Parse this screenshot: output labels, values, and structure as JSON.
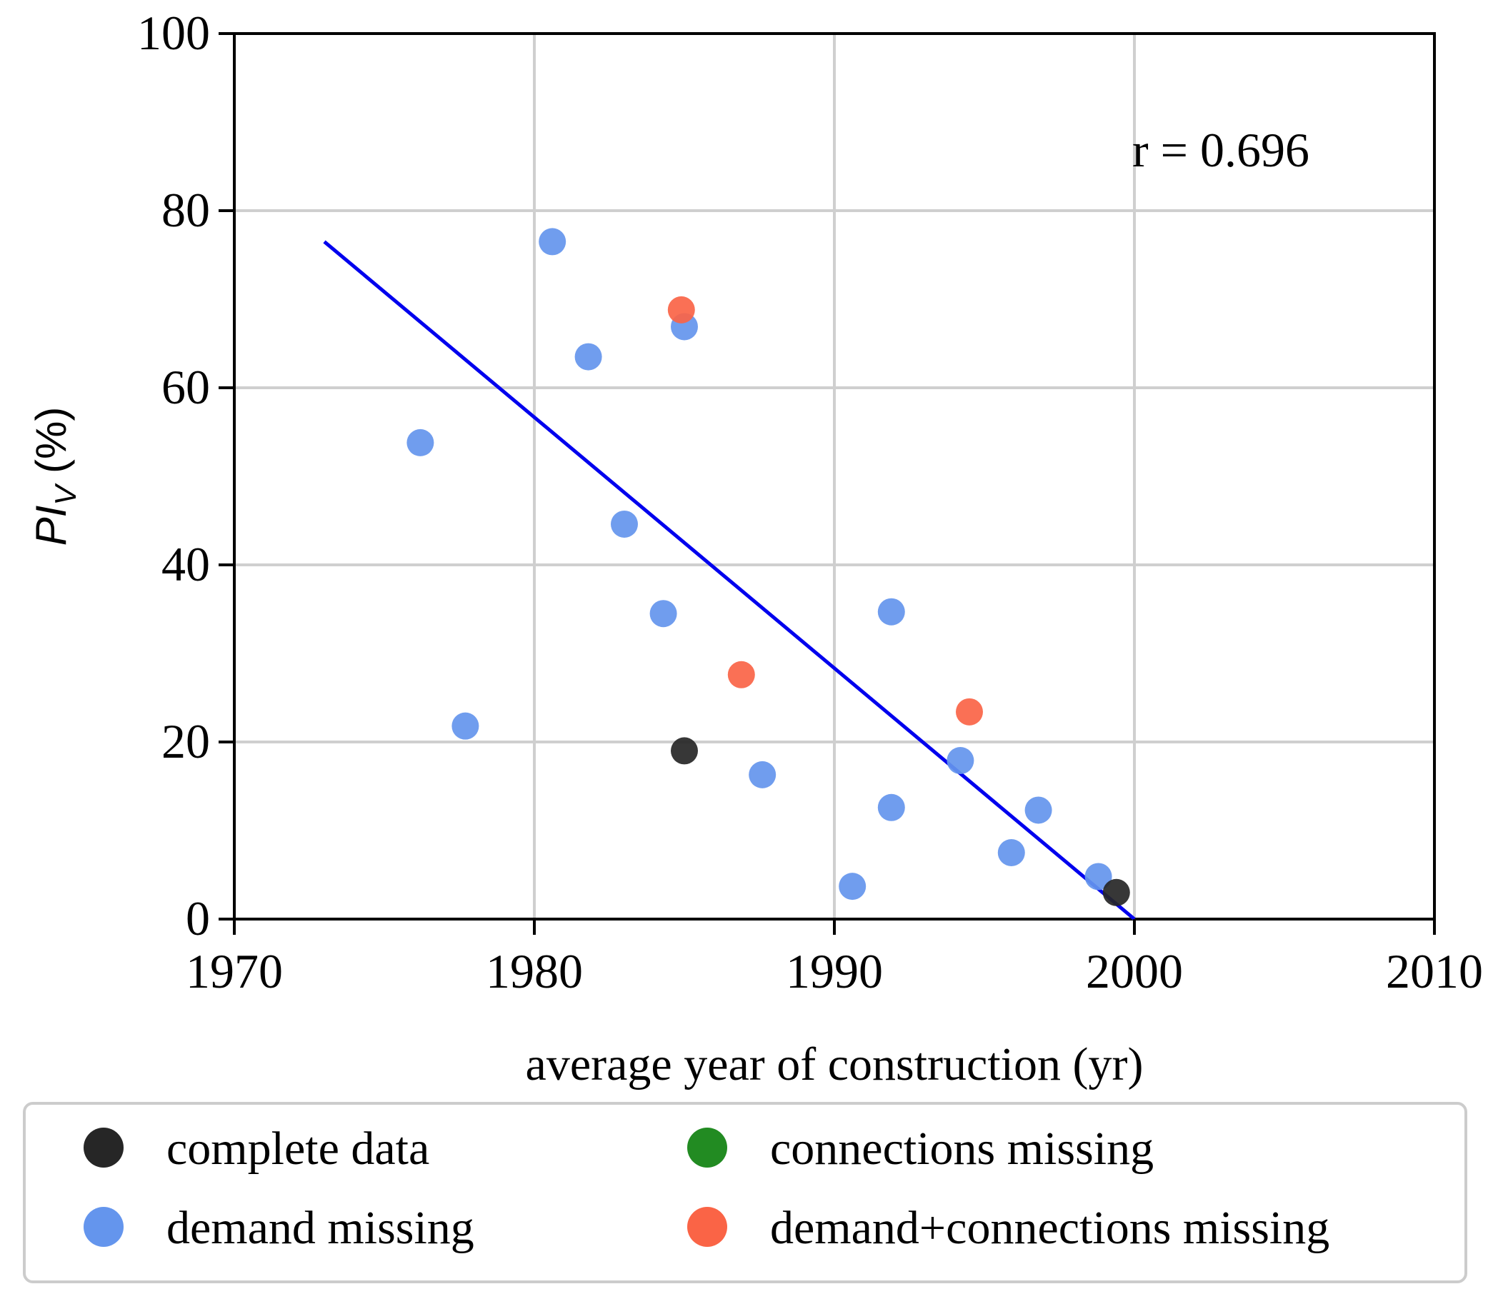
{
  "chart_data": {
    "type": "scatter",
    "title": "",
    "xlabel": "average year of construction (yr)",
    "ylabel": {
      "main": "PI",
      "sub": "V",
      "unit": " (%)"
    },
    "xlim": [
      1970,
      2010
    ],
    "ylim": [
      0,
      100
    ],
    "xticks": [
      1970,
      1980,
      1990,
      2000,
      2010
    ],
    "yticks": [
      0,
      20,
      40,
      60,
      80,
      100
    ],
    "grid": true,
    "annotation": "r = 0.696",
    "legend_position": "bottom",
    "series": [
      {
        "name": "complete data",
        "color": "#262626",
        "points": [
          [
            1985.0,
            19.0
          ],
          [
            1999.4,
            3.0
          ]
        ]
      },
      {
        "name": "connections missing",
        "color": "#228b22",
        "points": []
      },
      {
        "name": "demand missing",
        "color": "#6495ed",
        "points": [
          [
            1976.2,
            53.8
          ],
          [
            1977.7,
            21.8
          ],
          [
            1980.6,
            76.5
          ],
          [
            1981.8,
            63.5
          ],
          [
            1983.0,
            44.6
          ],
          [
            1984.3,
            34.5
          ],
          [
            1985.0,
            66.9
          ],
          [
            1987.6,
            16.3
          ],
          [
            1990.6,
            3.7
          ],
          [
            1991.9,
            34.7
          ],
          [
            1991.9,
            12.6
          ],
          [
            1994.2,
            17.9
          ],
          [
            1995.9,
            7.5
          ],
          [
            1996.8,
            12.3
          ],
          [
            1998.8,
            4.8
          ]
        ]
      },
      {
        "name": "demand+connections missing",
        "color": "#fa6446",
        "points": [
          [
            1984.9,
            68.8
          ],
          [
            1986.9,
            27.6
          ],
          [
            1994.5,
            23.4
          ]
        ]
      }
    ],
    "fit_line": {
      "color": "#0000ee",
      "points": [
        [
          1973.0,
          76.5
        ],
        [
          2000.0,
          0.0
        ]
      ]
    }
  }
}
